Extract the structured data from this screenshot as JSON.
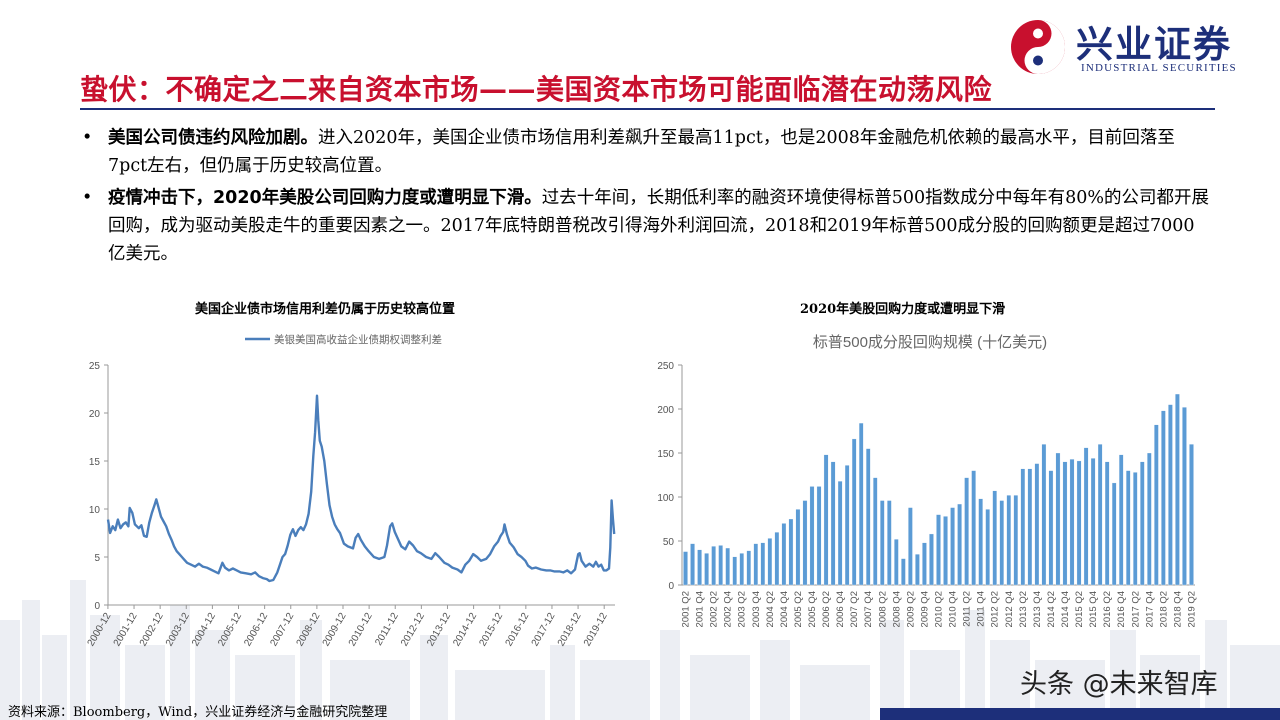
{
  "logo": {
    "cn": "兴业证券",
    "en": "INDUSTRIAL SECURITIES"
  },
  "title": "蛰伏：不确定之二来自资本市场——美国资本市场可能面临潜在动荡风险",
  "bullets": [
    {
      "lead": "美国公司债违约风险加剧。",
      "body": "进入2020年，美国企业债市场信用利差飙升至最高11pct，也是2008年金融危机依赖的最高水平，目前回落至7pct左右，但仍属于历史较高位置。"
    },
    {
      "lead": "疫情冲击下，2020年美股公司回购力度或遭明显下滑。",
      "body": "过去十年间，长期低利率的融资环境使得标普500指数成分中每年有80%的公司都开展回购，成为驱动美股走牛的重要因素之一。2017年底特朗普税改引得海外利润回流，2018和2019年标普500成分股的回购额更是超过7000亿美元。"
    }
  ],
  "chart_data": [
    {
      "type": "line",
      "title": "美国企业债市场信用利差仍属于历史较高位置",
      "legend": "美银美国高收益企业债期权调整利差",
      "legend_position": "top-center",
      "line_color": "#4a7ebb",
      "ylim": [
        0,
        25
      ],
      "yticks": [
        0,
        5,
        10,
        15,
        20,
        25
      ],
      "xlim": [
        2000.92,
        2020.33
      ],
      "xticks": [
        "2000-12",
        "2001-12",
        "2002-12",
        "2003-12",
        "2004-12",
        "2005-12",
        "2006-12",
        "2007-12",
        "2008-12",
        "2009-12",
        "2010-12",
        "2011-12",
        "2012-12",
        "2013-12",
        "2014-12",
        "2015-12",
        "2016-12",
        "2017-12",
        "2018-12",
        "2019-12"
      ],
      "points": [
        [
          2000.92,
          8.9
        ],
        [
          2001.0,
          7.5
        ],
        [
          2001.1,
          8.2
        ],
        [
          2001.2,
          7.8
        ],
        [
          2001.3,
          8.9
        ],
        [
          2001.4,
          8.0
        ],
        [
          2001.5,
          8.4
        ],
        [
          2001.6,
          8.6
        ],
        [
          2001.7,
          8.2
        ],
        [
          2001.75,
          10.1
        ],
        [
          2001.85,
          9.6
        ],
        [
          2001.95,
          8.4
        ],
        [
          2002.1,
          8.0
        ],
        [
          2002.2,
          8.3
        ],
        [
          2002.3,
          7.2
        ],
        [
          2002.4,
          7.1
        ],
        [
          2002.5,
          8.6
        ],
        [
          2002.6,
          9.6
        ],
        [
          2002.7,
          10.4
        ],
        [
          2002.77,
          11.0
        ],
        [
          2002.85,
          10.2
        ],
        [
          2002.95,
          9.2
        ],
        [
          2003.05,
          8.7
        ],
        [
          2003.15,
          8.2
        ],
        [
          2003.25,
          7.4
        ],
        [
          2003.35,
          6.8
        ],
        [
          2003.45,
          6.1
        ],
        [
          2003.55,
          5.6
        ],
        [
          2003.65,
          5.3
        ],
        [
          2003.75,
          5.0
        ],
        [
          2003.85,
          4.7
        ],
        [
          2003.95,
          4.4
        ],
        [
          2004.1,
          4.2
        ],
        [
          2004.25,
          4.0
        ],
        [
          2004.4,
          4.3
        ],
        [
          2004.55,
          4.0
        ],
        [
          2004.7,
          3.9
        ],
        [
          2004.85,
          3.7
        ],
        [
          2005.0,
          3.5
        ],
        [
          2005.15,
          3.3
        ],
        [
          2005.3,
          4.4
        ],
        [
          2005.4,
          3.9
        ],
        [
          2005.55,
          3.6
        ],
        [
          2005.7,
          3.8
        ],
        [
          2005.85,
          3.6
        ],
        [
          2006.0,
          3.4
        ],
        [
          2006.2,
          3.3
        ],
        [
          2006.4,
          3.2
        ],
        [
          2006.55,
          3.4
        ],
        [
          2006.7,
          3.0
        ],
        [
          2006.85,
          2.8
        ],
        [
          2007.0,
          2.7
        ],
        [
          2007.1,
          2.5
        ],
        [
          2007.25,
          2.6
        ],
        [
          2007.4,
          3.4
        ],
        [
          2007.5,
          4.2
        ],
        [
          2007.6,
          5.0
        ],
        [
          2007.7,
          5.3
        ],
        [
          2007.8,
          6.2
        ],
        [
          2007.9,
          7.3
        ],
        [
          2008.0,
          7.9
        ],
        [
          2008.1,
          7.2
        ],
        [
          2008.2,
          7.8
        ],
        [
          2008.3,
          8.1
        ],
        [
          2008.4,
          7.8
        ],
        [
          2008.5,
          8.4
        ],
        [
          2008.6,
          9.5
        ],
        [
          2008.7,
          11.8
        ],
        [
          2008.78,
          15.5
        ],
        [
          2008.85,
          18.0
        ],
        [
          2008.92,
          21.8
        ],
        [
          2008.97,
          19.2
        ],
        [
          2009.03,
          17.1
        ],
        [
          2009.1,
          16.5
        ],
        [
          2009.2,
          15.0
        ],
        [
          2009.3,
          12.6
        ],
        [
          2009.4,
          10.4
        ],
        [
          2009.5,
          9.2
        ],
        [
          2009.6,
          8.4
        ],
        [
          2009.7,
          7.9
        ],
        [
          2009.8,
          7.5
        ],
        [
          2009.95,
          6.4
        ],
        [
          2010.1,
          6.1
        ],
        [
          2010.3,
          5.9
        ],
        [
          2010.4,
          7.0
        ],
        [
          2010.5,
          7.4
        ],
        [
          2010.6,
          6.8
        ],
        [
          2010.75,
          6.1
        ],
        [
          2010.9,
          5.6
        ],
        [
          2011.1,
          5.0
        ],
        [
          2011.3,
          4.8
        ],
        [
          2011.5,
          5.0
        ],
        [
          2011.6,
          6.2
        ],
        [
          2011.72,
          8.2
        ],
        [
          2011.8,
          8.5
        ],
        [
          2011.9,
          7.6
        ],
        [
          2012.0,
          7.0
        ],
        [
          2012.15,
          6.1
        ],
        [
          2012.3,
          5.8
        ],
        [
          2012.45,
          6.6
        ],
        [
          2012.6,
          6.2
        ],
        [
          2012.75,
          5.6
        ],
        [
          2012.9,
          5.4
        ],
        [
          2013.1,
          5.0
        ],
        [
          2013.3,
          4.8
        ],
        [
          2013.45,
          5.4
        ],
        [
          2013.6,
          5.0
        ],
        [
          2013.8,
          4.4
        ],
        [
          2013.95,
          4.2
        ],
        [
          2014.1,
          3.9
        ],
        [
          2014.3,
          3.7
        ],
        [
          2014.45,
          3.4
        ],
        [
          2014.6,
          4.2
        ],
        [
          2014.75,
          4.6
        ],
        [
          2014.9,
          5.3
        ],
        [
          2015.05,
          5.0
        ],
        [
          2015.2,
          4.6
        ],
        [
          2015.4,
          4.8
        ],
        [
          2015.55,
          5.3
        ],
        [
          2015.7,
          6.1
        ],
        [
          2015.85,
          6.6
        ],
        [
          2015.95,
          7.2
        ],
        [
          2016.05,
          7.6
        ],
        [
          2016.1,
          8.4
        ],
        [
          2016.2,
          7.3
        ],
        [
          2016.3,
          6.5
        ],
        [
          2016.45,
          6.0
        ],
        [
          2016.6,
          5.3
        ],
        [
          2016.75,
          5.0
        ],
        [
          2016.9,
          4.6
        ],
        [
          2017.0,
          4.1
        ],
        [
          2017.15,
          3.8
        ],
        [
          2017.3,
          3.9
        ],
        [
          2017.5,
          3.7
        ],
        [
          2017.7,
          3.6
        ],
        [
          2017.85,
          3.6
        ],
        [
          2018.0,
          3.5
        ],
        [
          2018.2,
          3.5
        ],
        [
          2018.35,
          3.4
        ],
        [
          2018.5,
          3.6
        ],
        [
          2018.65,
          3.3
        ],
        [
          2018.8,
          3.7
        ],
        [
          2018.92,
          5.3
        ],
        [
          2018.98,
          5.4
        ],
        [
          2019.05,
          4.6
        ],
        [
          2019.2,
          4.0
        ],
        [
          2019.35,
          4.3
        ],
        [
          2019.5,
          4.0
        ],
        [
          2019.6,
          4.5
        ],
        [
          2019.7,
          4.0
        ],
        [
          2019.8,
          4.2
        ],
        [
          2019.9,
          3.6
        ],
        [
          2020.0,
          3.6
        ],
        [
          2020.1,
          3.8
        ],
        [
          2020.15,
          6.0
        ],
        [
          2020.2,
          10.9
        ],
        [
          2020.25,
          9.0
        ],
        [
          2020.3,
          7.4
        ]
      ]
    },
    {
      "type": "bar",
      "title": "2020年美股回购力度或遭明显下滑",
      "subtitle": "标普500成分股回购规模 (十亿美元)",
      "bar_color": "#5b9bd5",
      "ylim": [
        0,
        250
      ],
      "yticks": [
        0,
        50,
        100,
        150,
        200,
        250
      ],
      "tick_labels": [
        "2001 Q2",
        "2001 Q4",
        "2002 Q2",
        "2002 Q4",
        "2003 Q2",
        "2003 Q4",
        "2004 Q2",
        "2004 Q4",
        "2005 Q2",
        "2005 Q4",
        "2006 Q2",
        "2006 Q4",
        "2007 Q2",
        "2007 Q4",
        "2008 Q2",
        "2008 Q4",
        "2009 Q2",
        "2009 Q4",
        "2010 Q2",
        "2010 Q4",
        "2011 Q2",
        "2011 Q4",
        "2012 Q2",
        "2012 Q4",
        "2013 Q2",
        "2013 Q4",
        "2014 Q2",
        "2014 Q4",
        "2015 Q2",
        "2015 Q4",
        "2016 Q2",
        "2016 Q4",
        "2017 Q2",
        "2017 Q4",
        "2018 Q2",
        "2018 Q4",
        "2019 Q2"
      ],
      "tick_every": 2,
      "values": [
        38,
        47,
        40,
        36,
        44,
        45,
        42,
        32,
        36,
        39,
        47,
        48,
        53,
        60,
        70,
        75,
        86,
        96,
        112,
        112,
        148,
        140,
        118,
        136,
        166,
        184,
        155,
        122,
        96,
        96,
        52,
        30,
        88,
        35,
        48,
        58,
        80,
        78,
        88,
        92,
        122,
        130,
        98,
        86,
        107,
        96,
        102,
        102,
        132,
        132,
        138,
        160,
        130,
        150,
        140,
        143,
        141,
        156,
        144,
        160,
        140,
        116,
        148,
        130,
        128,
        140,
        150,
        182,
        198,
        205,
        217,
        202,
        160
      ]
    }
  ],
  "source": "资料来源：Bloomberg，Wind，兴业证券经济与金融研究院整理",
  "watermark": "头条 @未来智库"
}
